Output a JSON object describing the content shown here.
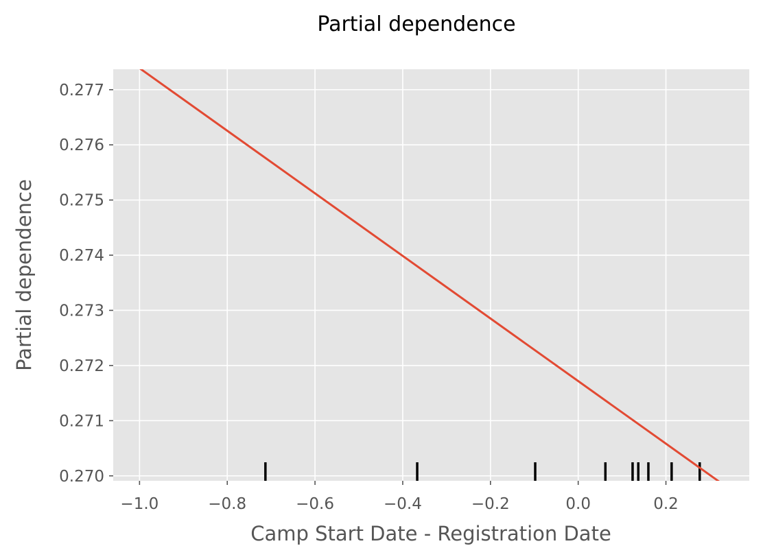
{
  "chart_data": {
    "type": "line",
    "title": "Partial dependence",
    "xlabel": "Camp Start Date - Registration Date",
    "ylabel": "Partial dependence",
    "xlim": [
      -1.06,
      0.39
    ],
    "ylim": [
      0.26991,
      0.27737
    ],
    "grid": true,
    "x_ticks": [
      -1.0,
      -0.8,
      -0.6,
      -0.4,
      -0.2,
      0.0,
      0.2
    ],
    "x_tick_labels": [
      "−1.0",
      "−0.8",
      "−0.6",
      "−0.4",
      "−0.2",
      "0.0",
      "0.2"
    ],
    "y_ticks": [
      0.27,
      0.271,
      0.272,
      0.273,
      0.274,
      0.275,
      0.276,
      0.277
    ],
    "y_tick_labels": [
      "0.270",
      "0.271",
      "0.272",
      "0.273",
      "0.274",
      "0.275",
      "0.276",
      "0.277"
    ],
    "series": [
      {
        "color": "#e24a33",
        "x": [
          -1.0,
          0.324
        ],
        "y": [
          0.27739,
          0.26988
        ]
      }
    ],
    "deciles": [
      -0.713,
      -0.367,
      -0.098,
      0.062,
      0.124,
      0.137,
      0.16,
      0.213,
      0.277
    ],
    "colors": {
      "plot_background": "#e5e5e5",
      "grid": "#ffffff",
      "line": "#e24a33",
      "deciles": "#000000"
    }
  }
}
